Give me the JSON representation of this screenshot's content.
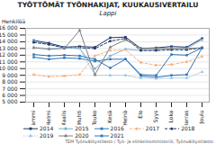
{
  "chart_data": {
    "type": "line",
    "title": "TYÖTTÖMÄT TYÖNHAKIJAT, KUUKAUSIVERTAILU",
    "subtitle": "Lappi",
    "y_label": "Henkilöä",
    "note": "TEM Työnvälitystilasto / Työ- ja elinkeinoministeriö, Työnvälitystilasto",
    "categories": [
      "Tammi",
      "Helmi",
      "Maalis",
      "Huhti",
      "Touko",
      "Kesä",
      "Heinä",
      "Elo",
      "Syys",
      "Loka",
      "Marras",
      "Joulu"
    ],
    "series": [
      {
        "name": "2014",
        "color": "#1f3864",
        "line_style": "solid",
        "marker": "square",
        "values": [
          14200,
          13800,
          13200,
          13300,
          13200,
          14600,
          14700,
          13000,
          13100,
          13300,
          13200,
          14500
        ]
      },
      {
        "name": "2015",
        "color": "#7bafd4",
        "line_style": "solid",
        "marker": "square",
        "values": [
          14100,
          13600,
          13100,
          13000,
          10000,
          11900,
          12900,
          12700,
          12800,
          13000,
          13000,
          14300
        ]
      },
      {
        "name": "2016",
        "color": "#2e75b6",
        "line_style": "solid",
        "marker": "square",
        "values": [
          11700,
          11400,
          11600,
          11500,
          11100,
          11400,
          11400,
          8900,
          8700,
          9000,
          9100,
          13100
        ]
      },
      {
        "name": "2017",
        "color": "#f4b183",
        "line_style": "dashed",
        "marker": "circle",
        "values": [
          9100,
          8800,
          8900,
          9100,
          11900,
          12700,
          12800,
          10900,
          10500,
          10600,
          11000,
          11800
        ]
      },
      {
        "name": "2018",
        "color": "#1f3864",
        "line_style": "dashed",
        "marker": "circle",
        "values": [
          13900,
          13600,
          13100,
          13100,
          13000,
          14100,
          14500,
          12700,
          12700,
          12800,
          12800,
          13100
        ]
      },
      {
        "name": "2019",
        "color": "#9dc3e6",
        "line_style": "dotted",
        "marker": "triangle",
        "values": [
          13200,
          13000,
          13100,
          13000,
          9000,
          9000,
          9000,
          8600,
          8500,
          8600,
          8600,
          9500
        ]
      },
      {
        "name": "2020",
        "color": "#808080",
        "line_style": "solid",
        "marker": "triangle",
        "values": [
          13100,
          12900,
          13000,
          15700,
          9100,
          13200,
          14300,
          13000,
          13000,
          13000,
          13000,
          13100
        ]
      },
      {
        "name": "2021",
        "color": "#2e75b6",
        "line_style": "solid",
        "marker": "square",
        "values": [
          12100,
          11900,
          12000,
          11900,
          11400,
          10100,
          11400,
          9100,
          9000,
          12100,
          12000,
          13100
        ]
      }
    ],
    "ylim": [
      5000,
      16000
    ],
    "yticks": [
      {
        "value": 5000,
        "label": "5 000"
      },
      {
        "value": 6000,
        "label": "6 000"
      },
      {
        "value": 7000,
        "label": "7 000"
      },
      {
        "value": 8000,
        "label": "8 000"
      },
      {
        "value": 9000,
        "label": "9 000"
      },
      {
        "value": 10000,
        "label": "10 000"
      },
      {
        "value": 11000,
        "label": "11 000"
      },
      {
        "value": 12000,
        "label": "12 000"
      },
      {
        "value": 13000,
        "label": "13 000"
      },
      {
        "value": 14000,
        "label": "14 000"
      },
      {
        "value": 15000,
        "label": "15 000"
      },
      {
        "value": 16000,
        "label": "16 000"
      }
    ],
    "grid": true
  }
}
